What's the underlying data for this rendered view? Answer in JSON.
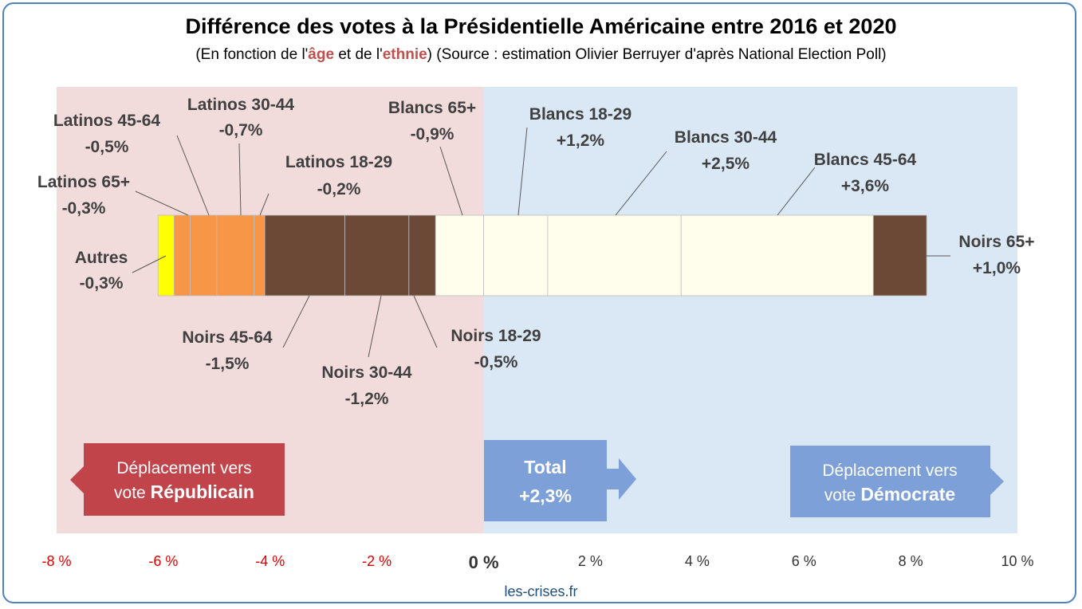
{
  "chart_data": {
    "type": "bar",
    "title": "Différence des votes à la Présidentielle Américaine entre 2016 et 2020",
    "subtitle": {
      "prefix": "(En fonction de l'",
      "age": "âge",
      "middle": " et de l'",
      "ethnie": "ethnie",
      "suffix": ") (Source : estimation Olivier Berruyer d'après National Election Poll)"
    },
    "xlim": [
      -8,
      10
    ],
    "tick_values": [
      -8,
      -6,
      -4,
      -2,
      0,
      2,
      4,
      6,
      8,
      10
    ],
    "tick_labels": [
      "-8 %",
      "-6 %",
      "-4 %",
      "-2 %",
      "0 %",
      "2 %",
      "4 %",
      "6 %",
      "8 %",
      "10 %"
    ],
    "regions": {
      "republican_color": "#f2dcdb",
      "democrat_color": "#dae7f4"
    },
    "segments": [
      {
        "name": "Autres",
        "value_label": "-0,3%",
        "value": -0.3,
        "color": "#ffff00"
      },
      {
        "name": "Latinos 65+",
        "value_label": "-0,3%",
        "value": -0.3,
        "color": "#f79646"
      },
      {
        "name": "Latinos 45-64",
        "value_label": "-0,5%",
        "value": -0.5,
        "color": "#f79646"
      },
      {
        "name": "Latinos 30-44",
        "value_label": "-0,7%",
        "value": -0.7,
        "color": "#f79646"
      },
      {
        "name": "Latinos 18-29",
        "value_label": "-0,2%",
        "value": -0.2,
        "color": "#f79646"
      },
      {
        "name": "Noirs 45-64",
        "value_label": "-1,5%",
        "value": -1.5,
        "color": "#6b4936"
      },
      {
        "name": "Noirs 30-44",
        "value_label": "-1,2%",
        "value": -1.2,
        "color": "#6b4936"
      },
      {
        "name": "Noirs 18-29",
        "value_label": "-0,5%",
        "value": -0.5,
        "color": "#6b4936"
      },
      {
        "name": "Blancs 65+",
        "value_label": "-0,9%",
        "value": -0.9,
        "color": "#fffdeb"
      },
      {
        "name": "Blancs 18-29",
        "value_label": "+1,2%",
        "value": 1.2,
        "color": "#fffdeb"
      },
      {
        "name": "Blancs 30-44",
        "value_label": "+2,5%",
        "value": 2.5,
        "color": "#fffdeb"
      },
      {
        "name": "Blancs 45-64",
        "value_label": "+3,6%",
        "value": 3.6,
        "color": "#fffdeb"
      },
      {
        "name": "Noirs 65+",
        "value_label": "+1,0%",
        "value": 1.0,
        "color": "#6b4936"
      }
    ],
    "total": {
      "label": "Total",
      "value_label": "+2,3%",
      "value": 2.3,
      "color": "#7da0d8"
    },
    "republican_box": {
      "line1": "Déplacement vers",
      "prefix": "vote ",
      "bold": "Républicain",
      "color": "#c0444a"
    },
    "democrat_box": {
      "line1": "Déplacement vers",
      "prefix": "vote ",
      "bold": "Démocrate",
      "color": "#7da0d8"
    }
  },
  "footer": "les-crises.fr"
}
